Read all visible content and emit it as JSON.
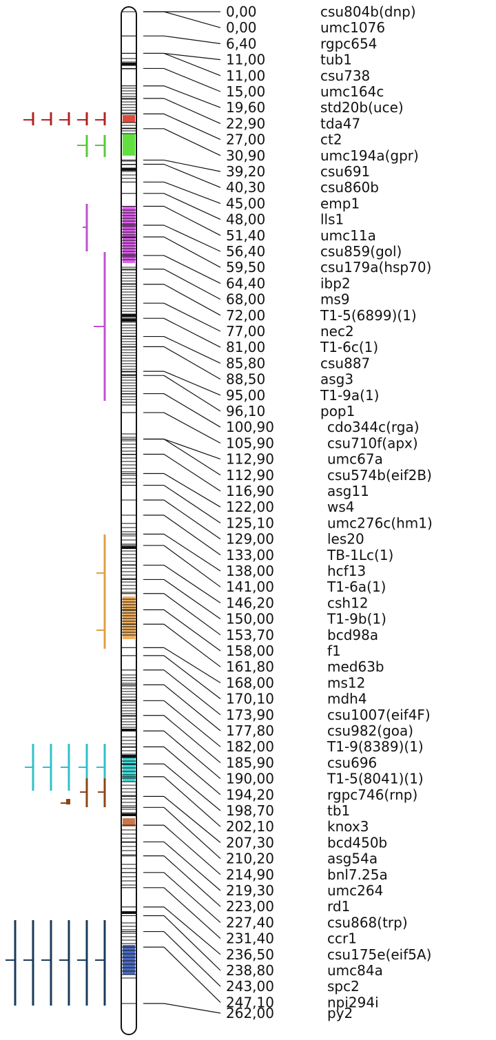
{
  "map": {
    "markers": [
      {
        "pos": "0,00",
        "name": "csu804b(dnp)"
      },
      {
        "pos": "0,00",
        "name": "umc1076"
      },
      {
        "pos": "6,40",
        "name": "rgpc654"
      },
      {
        "pos": "11,00",
        "name": "tub1"
      },
      {
        "pos": "11,00",
        "name": "csu738"
      },
      {
        "pos": "15,00",
        "name": "umc164c"
      },
      {
        "pos": "19,60",
        "name": "std20b(uce)"
      },
      {
        "pos": "22,90",
        "name": "tda47"
      },
      {
        "pos": "27,00",
        "name": "ct2"
      },
      {
        "pos": "30,90",
        "name": "umc194a(gpr)"
      },
      {
        "pos": "39,20",
        "name": "csu691"
      },
      {
        "pos": "40,30",
        "name": "csu860b"
      },
      {
        "pos": "45,00",
        "name": "emp1"
      },
      {
        "pos": "48,00",
        "name": "lls1"
      },
      {
        "pos": "51,40",
        "name": "umc11a"
      },
      {
        "pos": "56,40",
        "name": "csu859(gol)"
      },
      {
        "pos": "59,50",
        "name": "csu179a(hsp70)"
      },
      {
        "pos": "64,40",
        "name": "ibp2"
      },
      {
        "pos": "68,00",
        "name": "ms9"
      },
      {
        "pos": "72,00",
        "name": "T1-5(6899)(1)"
      },
      {
        "pos": "77,00",
        "name": "nec2"
      },
      {
        "pos": "81,00",
        "name": "T1-6c(1)"
      },
      {
        "pos": "85,80",
        "name": "csu887"
      },
      {
        "pos": "88,50",
        "name": "asg3"
      },
      {
        "pos": "95,00",
        "name": "T1-9a(1)"
      },
      {
        "pos": "96,10",
        "name": "pop1"
      },
      {
        "pos": "100,90",
        "name": "cdo344c(rga)"
      },
      {
        "pos": "105,90",
        "name": "csu710f(apx)"
      },
      {
        "pos": "112,90",
        "name": "umc67a"
      },
      {
        "pos": "112,90",
        "name": "csu574b(eif2B)"
      },
      {
        "pos": "116,90",
        "name": "asg11"
      },
      {
        "pos": "122,00",
        "name": "ws4"
      },
      {
        "pos": "125,10",
        "name": "umc276c(hm1)"
      },
      {
        "pos": "129,00",
        "name": "les20"
      },
      {
        "pos": "133,00",
        "name": "TB-1Lc(1)"
      },
      {
        "pos": "138,00",
        "name": "hcf13"
      },
      {
        "pos": "141,00",
        "name": "T1-6a(1)"
      },
      {
        "pos": "146,20",
        "name": "csh12"
      },
      {
        "pos": "150,00",
        "name": "T1-9b(1)"
      },
      {
        "pos": "153,70",
        "name": "bcd98a"
      },
      {
        "pos": "158,00",
        "name": "f1"
      },
      {
        "pos": "161,80",
        "name": "med63b"
      },
      {
        "pos": "168,00",
        "name": "ms12"
      },
      {
        "pos": "170,10",
        "name": "mdh4"
      },
      {
        "pos": "173,90",
        "name": "csu1007(eif4F)"
      },
      {
        "pos": "177,80",
        "name": "csu982(goa)"
      },
      {
        "pos": "182,00",
        "name": "T1-9(8389)(1)"
      },
      {
        "pos": "185,90",
        "name": "csu696"
      },
      {
        "pos": "190,00",
        "name": "T1-5(8041)(1)"
      },
      {
        "pos": "194,20",
        "name": "rgpc746(rnp)"
      },
      {
        "pos": "198,70",
        "name": "tb1"
      },
      {
        "pos": "202,10",
        "name": "knox3"
      },
      {
        "pos": "207,30",
        "name": "bcd450b"
      },
      {
        "pos": "210,20",
        "name": "asg54a"
      },
      {
        "pos": "214,90",
        "name": "bnl7.25a"
      },
      {
        "pos": "219,30",
        "name": "umc264"
      },
      {
        "pos": "223,00",
        "name": "rd1"
      },
      {
        "pos": "227,40",
        "name": "csu868(trp)"
      },
      {
        "pos": "231,40",
        "name": "ccr1"
      },
      {
        "pos": "236,50",
        "name": "csu175e(eif5A)"
      },
      {
        "pos": "238,80",
        "name": "umc84a"
      },
      {
        "pos": "243,00",
        "name": "spc2"
      },
      {
        "pos": "247,10",
        "name": "npi294i"
      },
      {
        "pos": "262,00",
        "name": "py2"
      }
    ],
    "regions": [
      {
        "name": "red",
        "color": "#b22222",
        "highlight": "#e04a3a"
      },
      {
        "name": "green",
        "color": "#58c83a",
        "highlight": "#62e040"
      },
      {
        "name": "magenta",
        "color": "#c050d0",
        "highlight": "#e060f0"
      },
      {
        "name": "orange",
        "color": "#e0a040",
        "highlight": "#f0b060"
      },
      {
        "name": "cyan",
        "color": "#30c0c8",
        "highlight": "#40d8d8"
      },
      {
        "name": "brown",
        "color": "#8b4513",
        "highlight": "#c87850"
      },
      {
        "name": "navy",
        "color": "#1a3a5a",
        "highlight": "#4a6ac0"
      }
    ]
  }
}
